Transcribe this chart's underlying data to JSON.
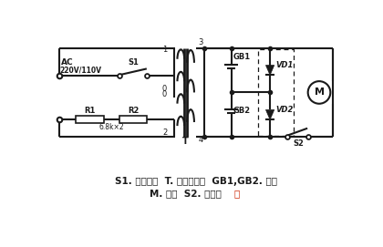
{
  "caption_line1": "S1. 转换开关  T. 电源变压器  GB1,GB2. 电池",
  "caption_line2_black": "M. 电机  S2. 电机开",
  "caption_line2_red": "关",
  "bg_color": "#ffffff",
  "line_color": "#1a1a1a",
  "red_color": "#cc2200",
  "fig_width": 4.2,
  "fig_height": 2.71,
  "dpi": 100
}
